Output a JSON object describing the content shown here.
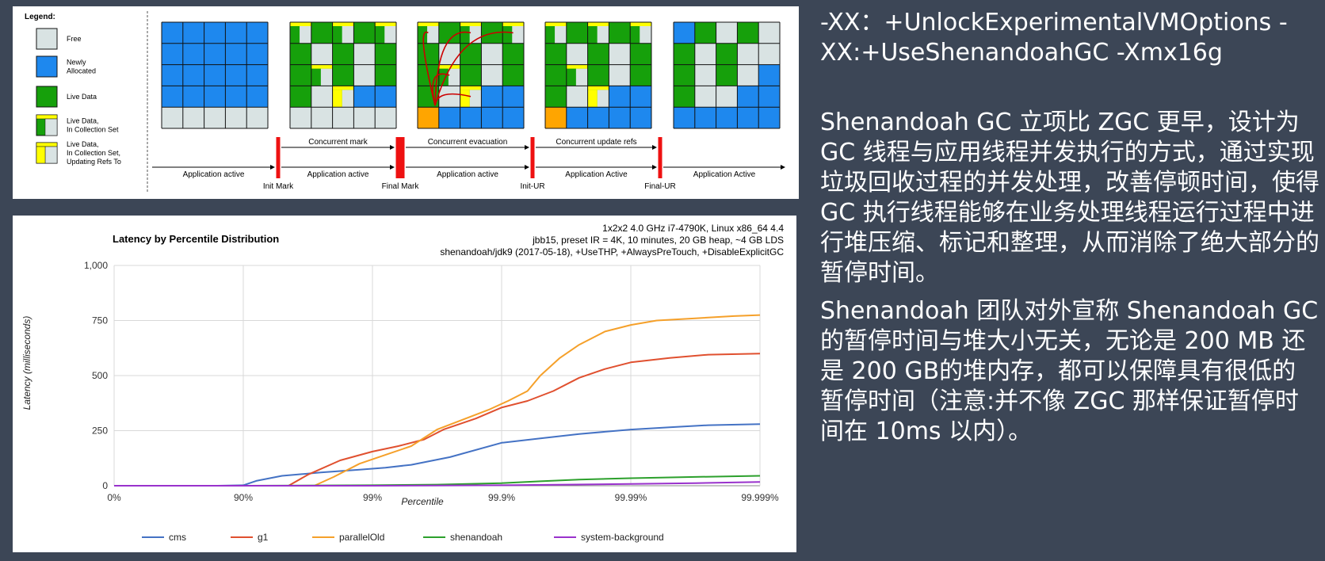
{
  "legend": {
    "title": "Legend:",
    "items": [
      {
        "key": "free",
        "lines": [
          "Free"
        ]
      },
      {
        "key": "new",
        "lines": [
          "Newly",
          "Allocated"
        ]
      },
      {
        "key": "live",
        "lines": [
          "Live Data"
        ]
      },
      {
        "key": "cset",
        "lines": [
          "Live Data,",
          "In Collection Set"
        ]
      },
      {
        "key": "upd",
        "lines": [
          "Live Data,",
          "In Collection Set,",
          "Updating Refs To"
        ]
      }
    ]
  },
  "phases": {
    "colors": {
      "free": "#d9e3e3",
      "new": "#1e88ee",
      "live": "#16a00b",
      "yellow": "#ffff00",
      "orange": "#ffa500",
      "pause": "#ee1111",
      "grid": "#111111",
      "arrow": "#cc0000"
    },
    "timeline": {
      "upper": [
        {
          "label": "Concurrent mark"
        },
        {
          "label": "Concurrent evacuation"
        },
        {
          "label": "Concurrent update refs"
        }
      ],
      "lower": [
        {
          "label": "Application active"
        },
        {
          "label": "Application active"
        },
        {
          "label": "Application active"
        },
        {
          "label": "Application Active"
        },
        {
          "label": "Application Active"
        }
      ],
      "pauses": [
        {
          "label": "Init Mark"
        },
        {
          "label": "Final Mark"
        },
        {
          "label": "Init-UR"
        },
        {
          "label": "Final-UR"
        }
      ]
    }
  },
  "chart_data": {
    "type": "line",
    "title": "Latency by Percentile Distribution",
    "subtitle_lines": [
      "1x2x2 4.0 GHz i7-4790K, Linux x86_64 4.4",
      "jbb15, preset IR = 4K, 10 minutes, 20 GB heap, ~4 GB LDS",
      "shenandoah/jdk9 (2017-05-18), +UseTHP, +AlwaysPreTouch, +DisableExplicitGC"
    ],
    "xlabel": "Percentile",
    "ylabel": "Latency (milliseconds)",
    "xscale": "percentile (log of 1/(1-p))",
    "x_ticks": [
      "0%",
      "90%",
      "99%",
      "99.9%",
      "99.99%",
      "99.999%"
    ],
    "y_ticks": [
      "0",
      "250",
      "500",
      "750",
      "1,000"
    ],
    "ylim": [
      0,
      1000
    ],
    "grid": true,
    "legend_position": "bottom",
    "x_tick_index": [
      0,
      1,
      2,
      3,
      4,
      5
    ],
    "series": [
      {
        "name": "cms",
        "color": "#4472c4",
        "x": [
          0,
          0.8,
          1,
          1.1,
          1.3,
          1.6,
          1.9,
          2.1,
          2.3,
          2.6,
          3,
          3.3,
          3.6,
          4,
          4.3,
          4.6,
          5
        ],
        "y": [
          0,
          0,
          2,
          22,
          45,
          60,
          73,
          82,
          95,
          130,
          195,
          215,
          235,
          255,
          265,
          275,
          280
        ]
      },
      {
        "name": "g1",
        "color": "#e0502f",
        "x": [
          0,
          1,
          1.35,
          1.5,
          1.75,
          2,
          2.2,
          2.4,
          2.55,
          2.8,
          3,
          3.2,
          3.4,
          3.6,
          3.8,
          4,
          4.3,
          4.6,
          5
        ],
        "y": [
          0,
          0,
          0,
          50,
          115,
          155,
          180,
          210,
          255,
          305,
          355,
          385,
          430,
          490,
          530,
          560,
          580,
          595,
          600
        ]
      },
      {
        "name": "parallelOld",
        "color": "#f5a02a",
        "x": [
          0,
          1,
          1.55,
          1.7,
          1.9,
          2.1,
          2.3,
          2.5,
          2.7,
          2.9,
          3.05,
          3.2,
          3.3,
          3.45,
          3.6,
          3.8,
          4,
          4.2,
          4.5,
          4.8,
          5
        ],
        "y": [
          0,
          0,
          0,
          40,
          100,
          140,
          180,
          255,
          300,
          345,
          385,
          430,
          500,
          580,
          640,
          700,
          730,
          750,
          760,
          770,
          775
        ]
      },
      {
        "name": "shenandoah",
        "color": "#2ca02c",
        "x": [
          0,
          1,
          2,
          2.5,
          3,
          3.3,
          3.6,
          4,
          4.5,
          5
        ],
        "y": [
          0,
          0,
          2,
          5,
          12,
          20,
          28,
          34,
          40,
          45
        ]
      },
      {
        "name": "system-background",
        "color": "#9932cc",
        "x": [
          0,
          1,
          2,
          2.5,
          3,
          3.5,
          4,
          4.5,
          5
        ],
        "y": [
          0,
          0,
          0,
          1,
          2,
          5,
          8,
          12,
          17
        ]
      }
    ]
  },
  "right_text": {
    "jvm_options": "-XX：+UnlockExperimentalVMOptions -XX:+UseShenandoahGC -Xmx16g",
    "para1": "Shenandoah GC 立项比 ZGC 更早，设计为 GC 线程与应用线程并发执行的方式，通过实现垃圾回收过程的并发处理，改善停顿时间，使得 GC 执行线程能够在业务处理线程运行过程中进行堆压缩、标记和整理，从而消除了绝大部分的暂停时间。",
    "para2": "Shenandoah 团队对外宣称 Shenandoah GC 的暂停时间与堆大小无关，无论是 200 MB 还是 200 GB的堆内存，都可以保障具有很低的暂停时间（注意:并不像 ZGC 那样保证暂停时间在 10ms 以内）。"
  }
}
